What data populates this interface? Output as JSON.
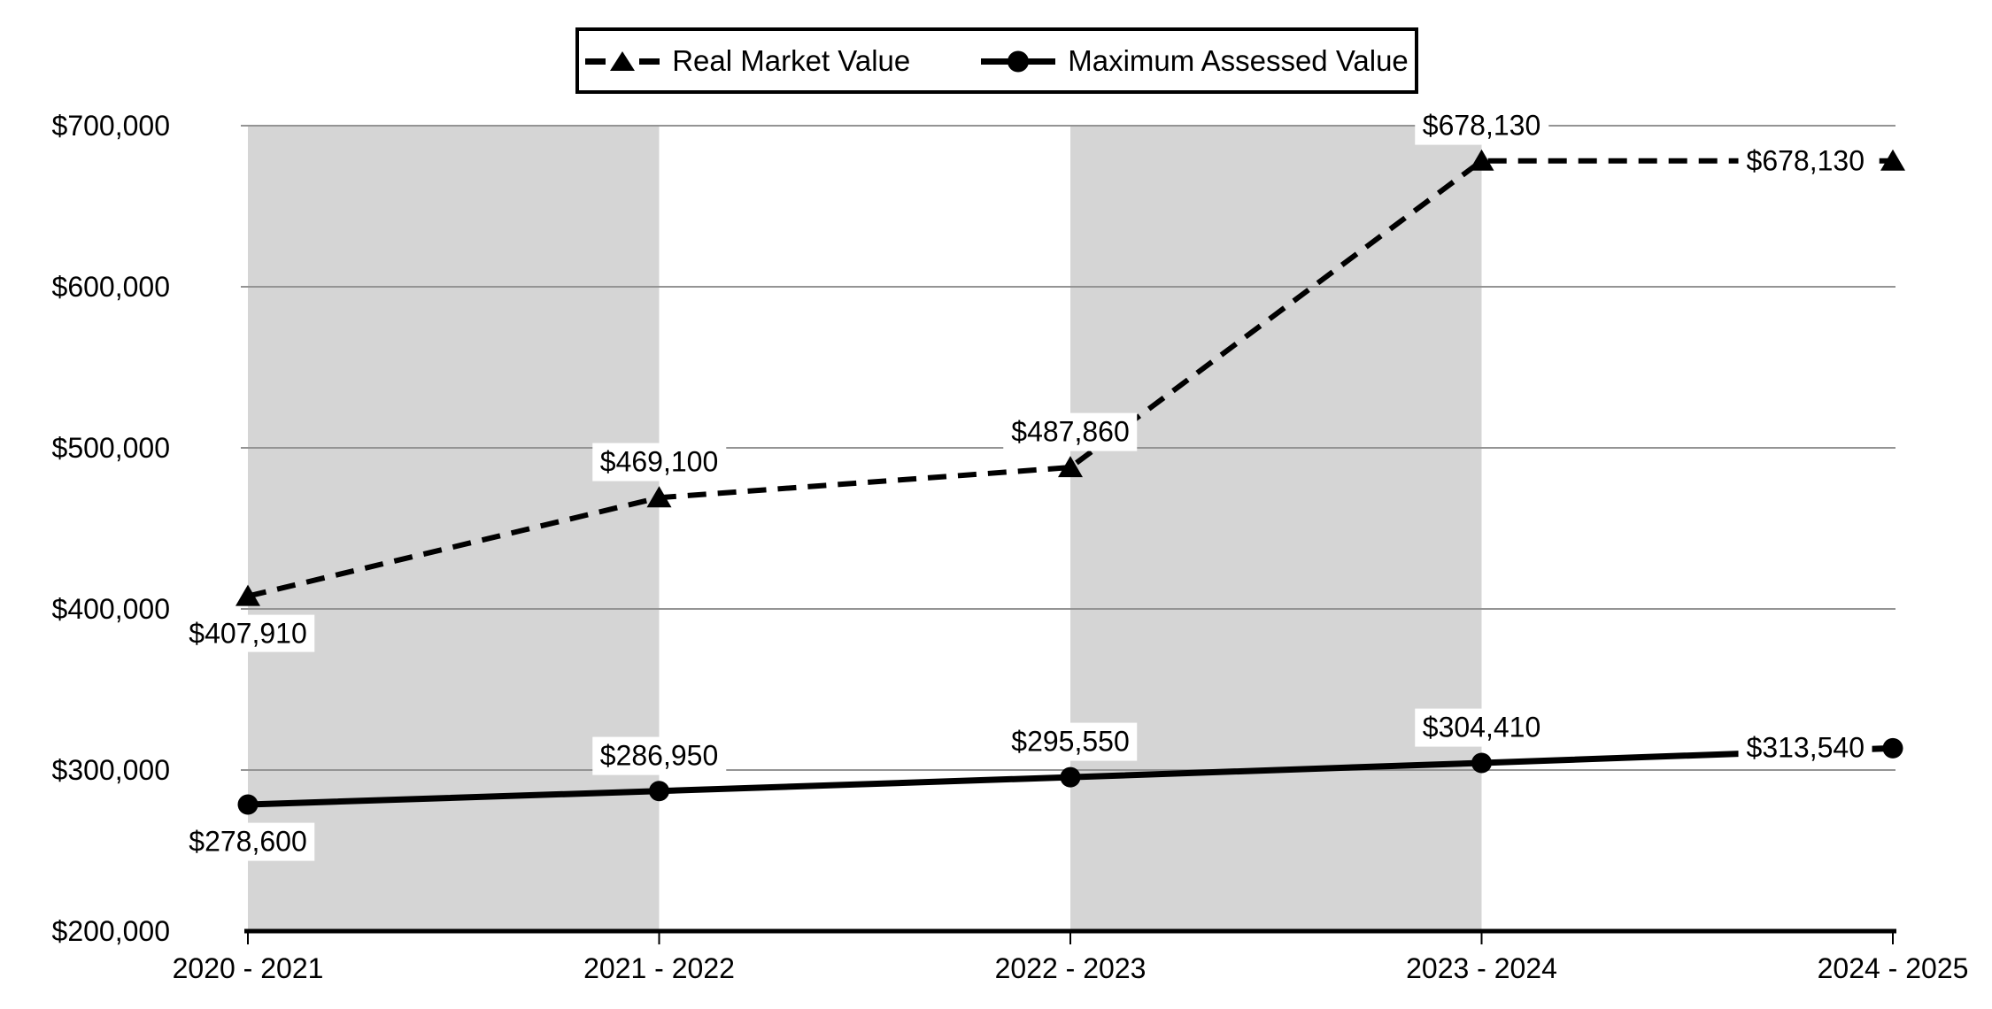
{
  "chart_data": {
    "type": "line",
    "title": "",
    "categories": [
      "2020 - 2021",
      "2021 - 2022",
      "2022 - 2023",
      "2023 - 2024",
      "2024 - 2025"
    ],
    "series": [
      {
        "name": "Real Market Value",
        "line_style": "dashed",
        "marker": "triangle",
        "color": "#000000",
        "values": [
          407910,
          469100,
          487860,
          678130,
          678130
        ],
        "data_labels": [
          "$407,910",
          "$469,100",
          "$487,860",
          "$678,130",
          "$678,130"
        ],
        "label_placement": [
          "below",
          "above",
          "above",
          "above",
          "left"
        ]
      },
      {
        "name": "Maximum Assessed Value",
        "line_style": "solid",
        "marker": "circle",
        "color": "#000000",
        "values": [
          278600,
          286950,
          295550,
          304410,
          313540
        ],
        "data_labels": [
          "$278,600",
          "$286,950",
          "$295,550",
          "$304,410",
          "$313,540"
        ],
        "label_placement": [
          "below",
          "above",
          "above",
          "above",
          "left"
        ]
      }
    ],
    "y_axis": {
      "ticks": [
        {
          "value": 200000,
          "label": "$200,000"
        },
        {
          "value": 300000,
          "label": "$300,000"
        },
        {
          "value": 400000,
          "label": "$400,000"
        },
        {
          "value": 500000,
          "label": "$500,000"
        },
        {
          "value": 600000,
          "label": "$600,000"
        },
        {
          "value": 700000,
          "label": "$700,000"
        }
      ]
    },
    "ylim": [
      200000,
      700000
    ],
    "grid": true,
    "legend_position": "top-center",
    "band_pairs": [
      [
        0,
        1
      ],
      [
        2,
        3
      ]
    ]
  },
  "colors": {
    "band": "#d5d5d5",
    "gridline": "#949494",
    "axis": "#000000",
    "series": "#000000",
    "label_background": "#ffffff",
    "text": "#000000"
  }
}
